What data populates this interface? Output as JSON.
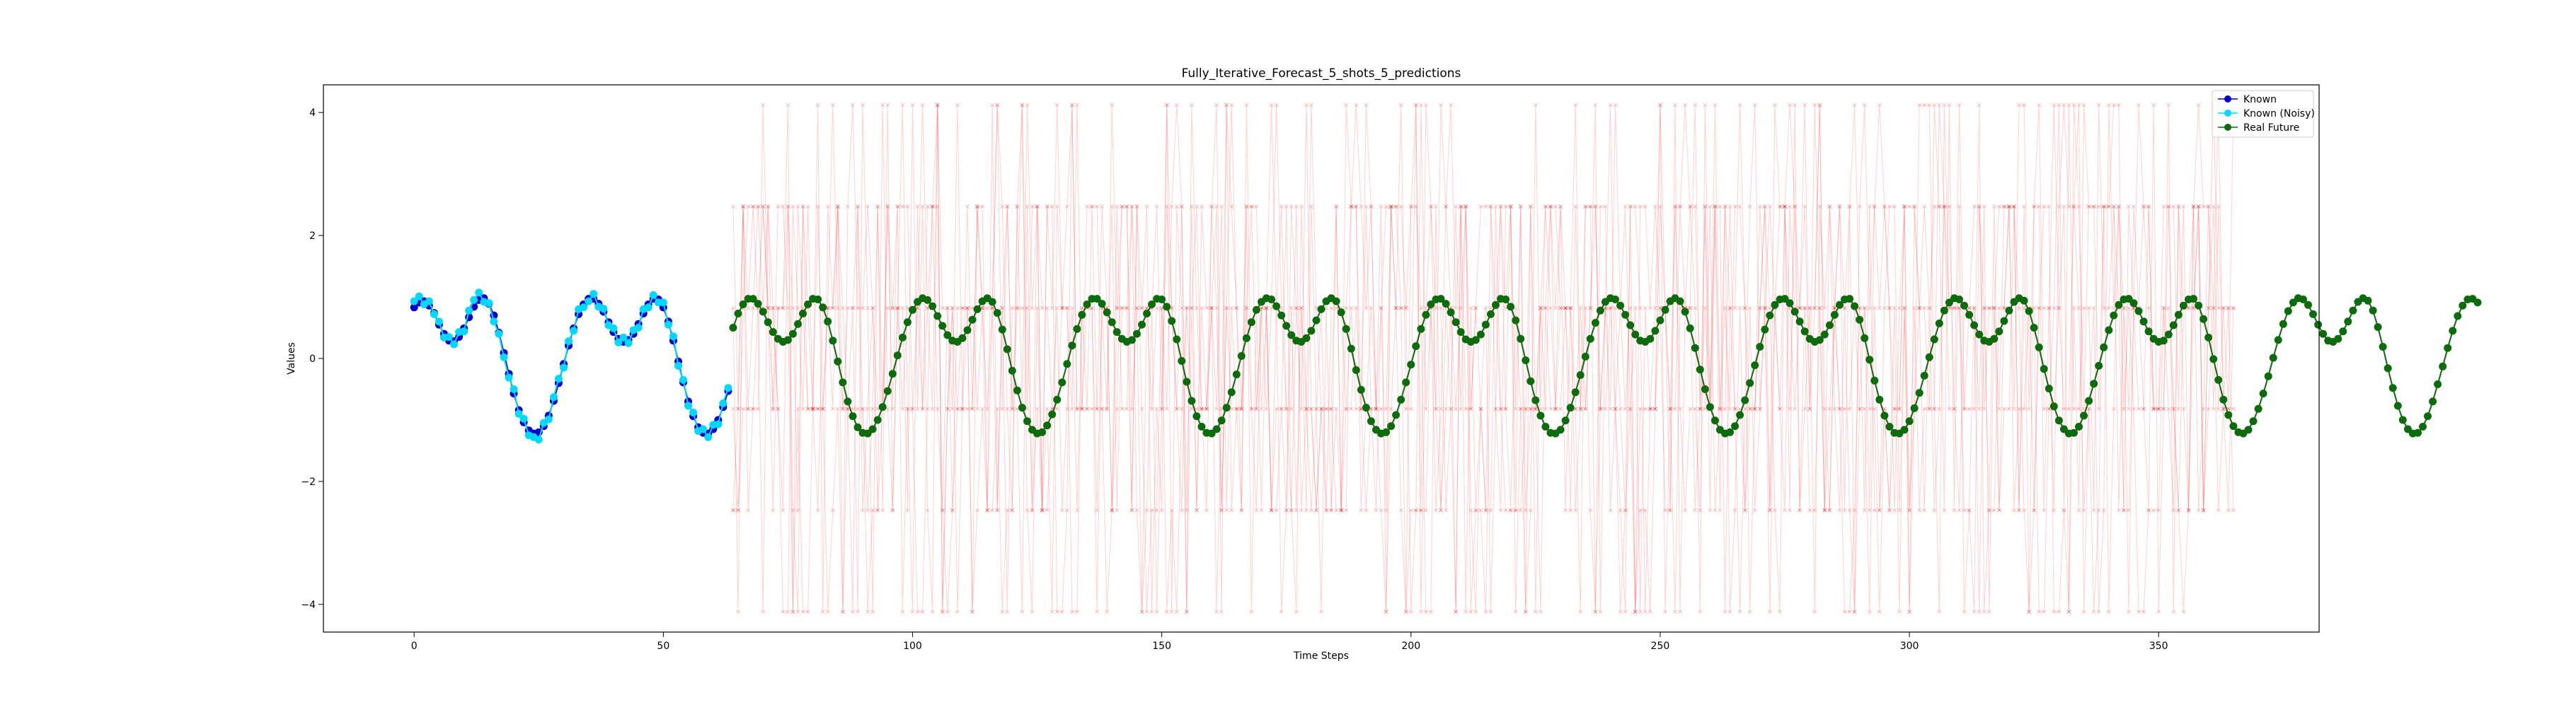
{
  "chart_data": {
    "type": "line",
    "title": "Fully_Iterative_Forecast_5_shots_5_predictions",
    "xlabel": "Time Steps",
    "ylabel": "Values",
    "xlim": [
      -18.2,
      382.2
    ],
    "ylim": [
      -4.45,
      4.45
    ],
    "xticks": [
      0,
      50,
      100,
      150,
      200,
      250,
      300,
      350
    ],
    "yticks": [
      -4,
      -2,
      0,
      2,
      4
    ],
    "xtick_labels": [
      "0",
      "50",
      "100",
      "150",
      "200",
      "250",
      "300",
      "350"
    ],
    "ytick_labels": [
      "−4",
      "−2",
      "0",
      "2",
      "4"
    ],
    "grid": false,
    "legend_position": "top-right",
    "legend": [
      "Known",
      "Known (Noisy)",
      "Real Future"
    ],
    "series": [
      {
        "name": "Known",
        "color": "#0000cc",
        "marker": "circle",
        "x_start": 0,
        "x_step": 1,
        "values": [
          0.83,
          0.91,
          0.93,
          0.86,
          0.74,
          0.55,
          0.4,
          0.29,
          0.28,
          0.35,
          0.49,
          0.67,
          0.84,
          0.95,
          0.98,
          0.89,
          0.7,
          0.42,
          0.09,
          -0.25,
          -0.57,
          -0.84,
          -1.04,
          -1.17,
          -1.22,
          -1.2,
          -1.1,
          -0.93,
          -0.69,
          -0.4,
          -0.09,
          0.21,
          0.49,
          0.72,
          0.88,
          0.97,
          0.97,
          0.89,
          0.76,
          0.59,
          0.43,
          0.32,
          0.27,
          0.3,
          0.4,
          0.56,
          0.73,
          0.88,
          0.97,
          0.96,
          0.83,
          0.6,
          0.29,
          -0.05,
          -0.39,
          -0.7,
          -0.94,
          -1.12,
          -1.21,
          -1.22,
          -1.15,
          -1.0,
          -0.79,
          -0.53
        ]
      },
      {
        "name": "Known (Noisy)",
        "color": "#00d8ff",
        "marker": "circle",
        "x_start": 0,
        "x_step": 1,
        "values": [
          0.93,
          1.01,
          0.88,
          0.93,
          0.72,
          0.6,
          0.34,
          0.35,
          0.23,
          0.43,
          0.44,
          0.78,
          0.95,
          1.07,
          0.92,
          0.9,
          0.6,
          0.4,
          0.02,
          -0.31,
          -0.5,
          -0.9,
          -0.98,
          -1.25,
          -1.28,
          -1.32,
          -1.05,
          -0.99,
          -0.63,
          -0.33,
          -0.15,
          0.28,
          0.45,
          0.8,
          0.83,
          0.93,
          1.05,
          0.84,
          0.81,
          0.54,
          0.49,
          0.26,
          0.34,
          0.25,
          0.46,
          0.5,
          0.8,
          0.83,
          1.03,
          0.91,
          0.91,
          0.55,
          0.36,
          -0.12,
          -0.35,
          -0.77,
          -0.88,
          -1.18,
          -1.15,
          -1.28,
          -1.08,
          -1.07,
          -0.73,
          -0.48
        ]
      },
      {
        "name": "Real Future",
        "color": "#0c6b0c",
        "marker": "circle",
        "x_start": 64,
        "x_step": 1,
        "values": [
          0.5,
          0.73,
          0.88,
          0.97,
          0.97,
          0.89,
          0.76,
          0.59,
          0.43,
          0.32,
          0.27,
          0.3,
          0.4,
          0.56,
          0.73,
          0.88,
          0.97,
          0.96,
          0.83,
          0.6,
          0.29,
          -0.05,
          -0.39,
          -0.7,
          -0.94,
          -1.12,
          -1.21,
          -1.22,
          -1.15,
          -1.0,
          -0.79,
          -0.53,
          -0.25,
          0.05,
          0.34,
          0.59,
          0.79,
          0.92,
          0.98,
          0.95,
          0.85,
          0.69,
          0.53,
          0.38,
          0.29,
          0.27,
          0.33,
          0.46,
          0.63,
          0.8,
          0.93,
          0.98,
          0.92,
          0.74,
          0.47,
          0.15,
          -0.2,
          -0.52,
          -0.8,
          -1.02,
          -1.16,
          -1.22,
          -1.2,
          -1.09,
          -0.91,
          -0.67,
          -0.39,
          -0.09,
          0.21,
          0.48,
          0.71,
          0.88,
          0.97,
          0.97,
          0.89,
          0.75,
          0.59,
          0.43,
          0.32,
          0.27,
          0.3,
          0.4,
          0.55,
          0.73,
          0.88,
          0.97,
          0.96,
          0.84,
          0.61,
          0.31,
          -0.04,
          -0.38,
          -0.69,
          -0.94,
          -1.11,
          -1.21,
          -1.22,
          -1.15,
          -1.01,
          -0.8,
          -0.55,
          -0.26,
          0.04,
          0.33,
          0.59,
          0.79,
          0.92,
          0.98,
          0.96,
          0.85,
          0.7,
          0.53,
          0.38,
          0.29,
          0.27,
          0.33,
          0.45,
          0.62,
          0.8,
          0.93,
          0.98,
          0.93,
          0.75,
          0.48,
          0.16,
          -0.19,
          -0.51,
          -0.8,
          -1.02,
          -1.16,
          -1.22,
          -1.2,
          -1.1,
          -0.92,
          -0.67,
          -0.39,
          -0.1,
          0.2,
          0.48,
          0.71,
          0.88,
          0.96,
          0.97,
          0.89,
          0.75,
          0.59,
          0.43,
          0.31,
          0.27,
          0.3,
          0.39,
          0.55,
          0.72,
          0.87,
          0.97,
          0.96,
          0.84,
          0.62,
          0.32,
          -0.03,
          -0.37,
          -0.68,
          -0.93,
          -1.11,
          -1.21,
          -1.22,
          -1.16,
          -1.01,
          -0.8,
          -0.55,
          -0.27,
          0.03,
          0.32,
          0.58,
          0.78,
          0.92,
          0.98,
          0.96,
          0.86,
          0.71,
          0.54,
          0.39,
          0.29,
          0.27,
          0.32,
          0.45,
          0.62,
          0.79,
          0.93,
          0.98,
          0.93,
          0.76,
          0.49,
          0.17,
          -0.18,
          -0.5,
          -0.79,
          -1.01,
          -1.16,
          -1.22,
          -1.2,
          -1.1,
          -0.92,
          -0.68,
          -0.4,
          -0.11,
          0.19,
          0.47,
          0.7,
          0.87,
          0.96,
          0.97,
          0.9,
          0.76,
          0.6,
          0.44,
          0.32,
          0.27,
          0.3,
          0.39,
          0.54,
          0.71,
          0.87,
          0.96,
          0.97,
          0.85,
          0.63,
          0.33,
          -0.02,
          -0.36,
          -0.67,
          -0.93,
          -1.11,
          -1.21,
          -1.22,
          -1.16,
          -1.02,
          -0.81,
          -0.56,
          -0.28,
          0.02,
          0.31,
          0.57,
          0.78,
          0.91,
          0.98,
          0.96,
          0.86,
          0.71,
          0.54,
          0.39,
          0.29,
          0.27,
          0.32,
          0.44,
          0.61,
          0.78,
          0.92,
          0.98,
          0.94,
          0.77,
          0.5,
          0.18,
          -0.17,
          -0.49,
          -0.78,
          -1.01,
          -1.15,
          -1.22,
          -1.21,
          -1.11,
          -0.93,
          -0.69,
          -0.41,
          -0.12,
          0.18,
          0.46,
          0.7,
          0.87,
          0.96,
          0.97,
          0.9,
          0.77,
          0.6,
          0.44,
          0.32,
          0.27,
          0.29,
          0.39,
          0.54,
          0.71,
          0.86,
          0.96,
          0.97,
          0.86,
          0.64,
          0.34,
          -0.01,
          -0.35,
          -0.67,
          -0.92,
          -1.1,
          -1.2,
          -1.22,
          -1.16,
          -1.02,
          -0.82,
          -0.57,
          -0.29,
          0.01,
          0.3,
          0.56,
          0.77,
          0.91,
          0.98,
          0.96,
          0.87,
          0.72,
          0.55,
          0.4,
          0.29,
          0.27,
          0.32,
          0.44,
          0.6,
          0.78,
          0.92,
          0.98,
          0.94,
          0.78,
          0.51,
          0.19,
          -0.16,
          -0.48,
          -0.77,
          -1.0,
          -1.15,
          -1.22,
          -1.21,
          -1.11,
          -0.94,
          -0.7,
          -0.42,
          -0.13,
          0.17,
          0.45,
          0.69,
          0.86,
          0.96,
          0.97,
          0.91
        ]
      }
    ],
    "prediction_traces": {
      "color": "#ff0000",
      "alpha": 0.18,
      "marker": "x",
      "x_start": 64,
      "x_end": 365,
      "levels": [
        4.12,
        2.47,
        0.82,
        -0.82,
        -2.47,
        -4.12
      ],
      "count": 5
    }
  }
}
